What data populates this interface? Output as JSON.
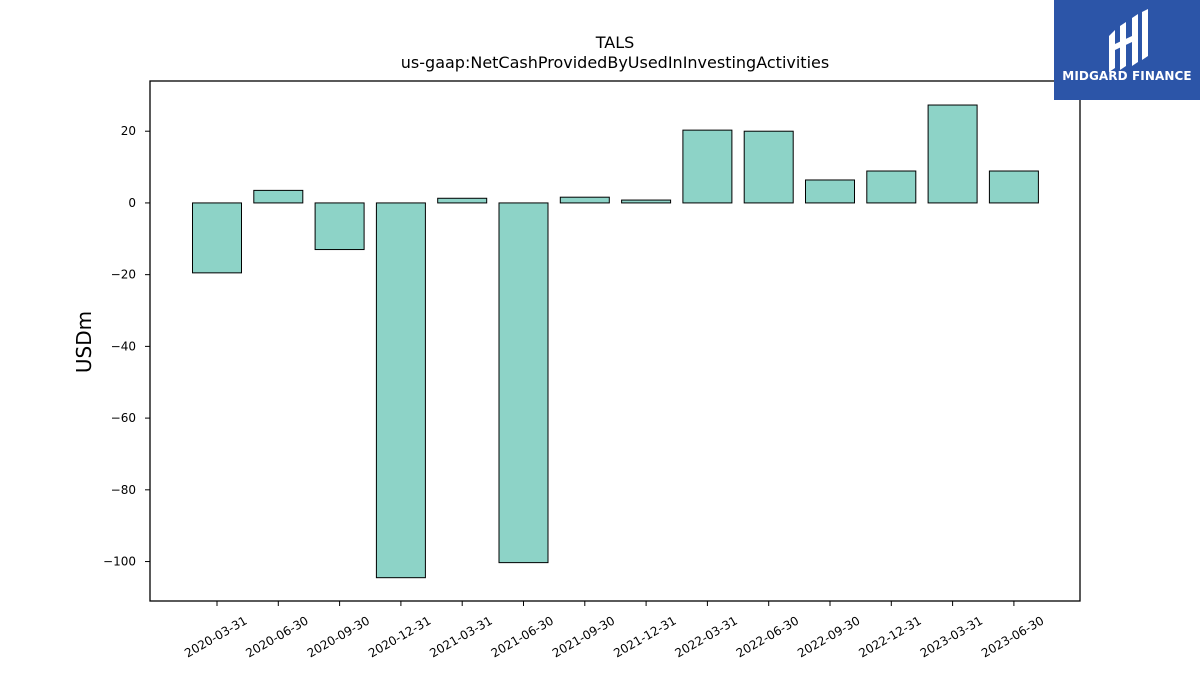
{
  "brand": {
    "name": "MIDGARD FINANCE",
    "background": "#2c55a8",
    "mark_color": "#ffffff"
  },
  "chart_data": {
    "type": "bar",
    "title": "TALS",
    "subtitle": "us-gaap:NetCashProvidedByUsedInInvestingActivities",
    "xlabel": "",
    "ylabel": "USDm",
    "ylim": [
      -111,
      34
    ],
    "yticks": [
      20,
      0,
      -20,
      -40,
      -60,
      -80,
      -100
    ],
    "ytick_labels": [
      "20",
      "0",
      "−20",
      "−40",
      "−60",
      "−80",
      "−100"
    ],
    "grid": false,
    "bar_color": "#8dd3c7",
    "edge_color": "#000000",
    "categories": [
      "2020-03-31",
      "2020-06-30",
      "2020-09-30",
      "2020-12-31",
      "2021-03-31",
      "2021-06-30",
      "2021-09-30",
      "2021-12-31",
      "2022-03-31",
      "2022-06-30",
      "2022-09-30",
      "2022-12-31",
      "2023-03-31",
      "2023-06-30"
    ],
    "values": [
      -19.5,
      3.5,
      -13.0,
      -104.5,
      1.3,
      -100.3,
      1.6,
      0.8,
      20.3,
      20.0,
      6.4,
      8.9,
      27.3,
      8.9
    ]
  }
}
